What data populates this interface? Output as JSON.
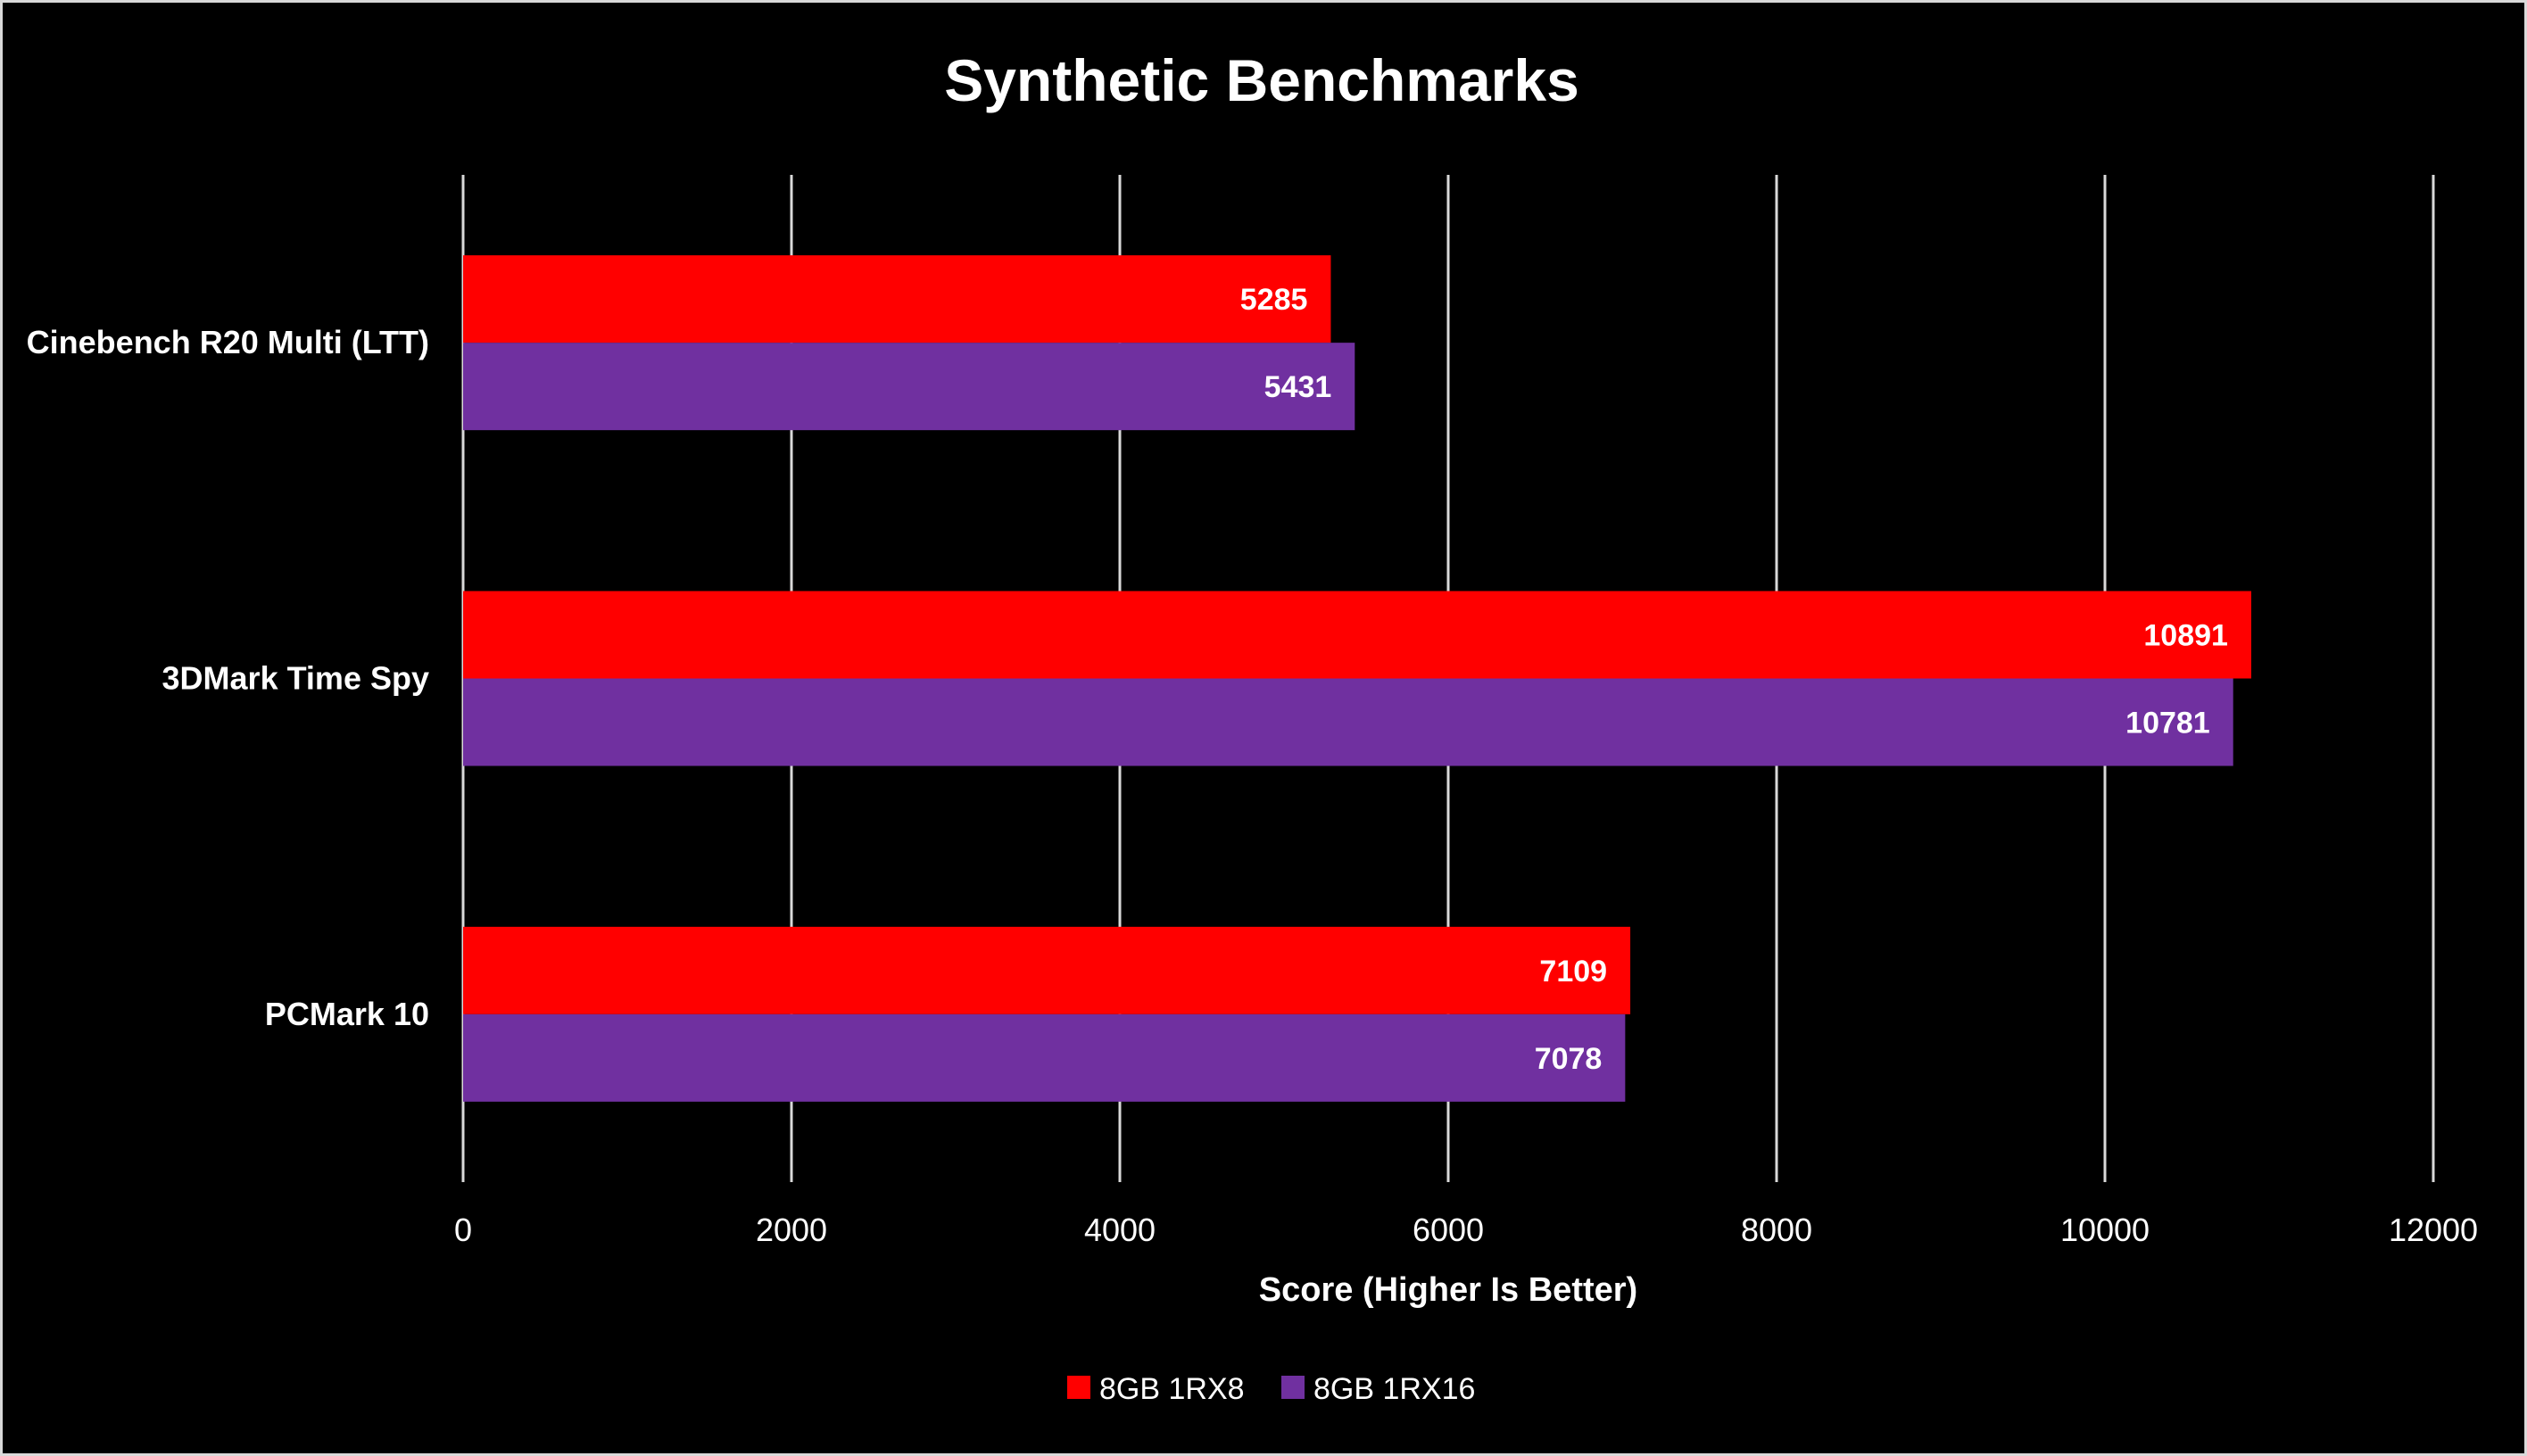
{
  "chart_data": {
    "type": "bar",
    "orientation": "horizontal",
    "title": "Synthetic Benchmarks",
    "xlabel": "Score (Higher Is Better)",
    "ylabel": "",
    "categories": [
      "Cinebench R20 Multi (LTT)",
      "3DMark Time Spy",
      "PCMark 10"
    ],
    "series": [
      {
        "name": "8GB 1RX8",
        "color": "#ff0000",
        "values": [
          5285,
          10891,
          7109
        ]
      },
      {
        "name": "8GB 1RX16",
        "color": "#7030a0",
        "values": [
          5431,
          10781,
          7078
        ]
      }
    ],
    "xlim": [
      0,
      12000
    ],
    "xticks": [
      0,
      2000,
      4000,
      6000,
      8000,
      10000,
      12000
    ],
    "grid": true,
    "legend_position": "bottom"
  },
  "colors": {
    "background": "#000000",
    "gridline": "#d9d9d9",
    "text": "#ffffff"
  }
}
